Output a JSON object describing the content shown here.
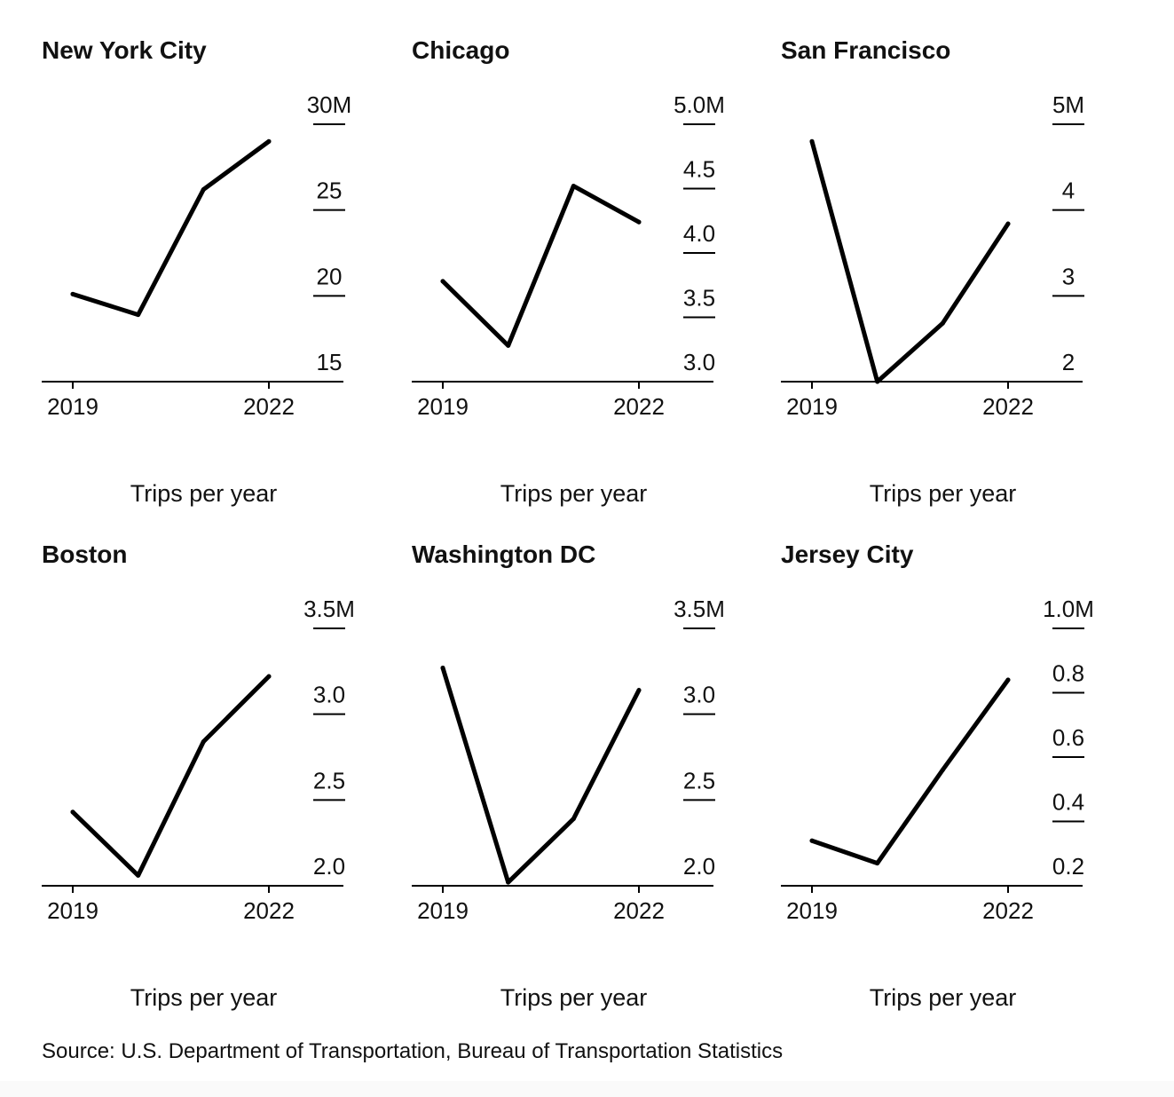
{
  "source": "Source: U.S. Department of Transportation, Bureau of Transportation Statistics",
  "chart_data": [
    {
      "type": "line",
      "title": "New York City",
      "ylabel": "Trips per year",
      "x": [
        2019,
        2020,
        2021,
        2022
      ],
      "x_ticks": [
        "2019",
        "2022"
      ],
      "values": [
        20.1,
        18.9,
        26.2,
        29.0
      ],
      "ylim": [
        15,
        30
      ],
      "y_ticks": [
        "15",
        "20",
        "25",
        "30M"
      ],
      "color": "#000000"
    },
    {
      "type": "line",
      "title": "Chicago",
      "ylabel": "Trips per year",
      "x": [
        2019,
        2020,
        2021,
        2022
      ],
      "x_ticks": [
        "2019",
        "2022"
      ],
      "values": [
        3.78,
        3.28,
        4.52,
        4.24
      ],
      "ylim": [
        3.0,
        5.0
      ],
      "y_ticks": [
        "3.0",
        "3.5",
        "4.0",
        "4.5",
        "5.0M"
      ],
      "color": "#000000"
    },
    {
      "type": "line",
      "title": "San Francisco",
      "ylabel": "Trips per year",
      "x": [
        2019,
        2020,
        2021,
        2022
      ],
      "x_ticks": [
        "2019",
        "2022"
      ],
      "values": [
        4.8,
        2.0,
        2.68,
        3.84
      ],
      "ylim": [
        2,
        5
      ],
      "y_ticks": [
        "2",
        "3",
        "4",
        "5M"
      ],
      "color": "#000000"
    },
    {
      "type": "line",
      "title": "Boston",
      "ylabel": "Trips per year",
      "x": [
        2019,
        2020,
        2021,
        2022
      ],
      "x_ticks": [
        "2019",
        "2022"
      ],
      "values": [
        2.43,
        2.06,
        2.84,
        3.22
      ],
      "ylim": [
        2.0,
        3.5
      ],
      "y_ticks": [
        "2.0",
        "2.5",
        "3.0",
        "3.5M"
      ],
      "color": "#000000"
    },
    {
      "type": "line",
      "title": "Washington DC",
      "ylabel": "Trips per year",
      "x": [
        2019,
        2020,
        2021,
        2022
      ],
      "x_ticks": [
        "2019",
        "2022"
      ],
      "values": [
        3.27,
        2.02,
        2.39,
        3.14
      ],
      "ylim": [
        2.0,
        3.5
      ],
      "y_ticks": [
        "2.0",
        "2.5",
        "3.0",
        "3.5M"
      ],
      "color": "#000000"
    },
    {
      "type": "line",
      "title": "Jersey City",
      "ylabel": "Trips per year",
      "x": [
        2019,
        2020,
        2021,
        2022
      ],
      "x_ticks": [
        "2019",
        "2022"
      ],
      "values": [
        0.34,
        0.27,
        0.56,
        0.84
      ],
      "ylim": [
        0.2,
        1.0
      ],
      "y_ticks": [
        "0.2",
        "0.4",
        "0.6",
        "0.8",
        "1.0M"
      ],
      "color": "#000000"
    }
  ]
}
